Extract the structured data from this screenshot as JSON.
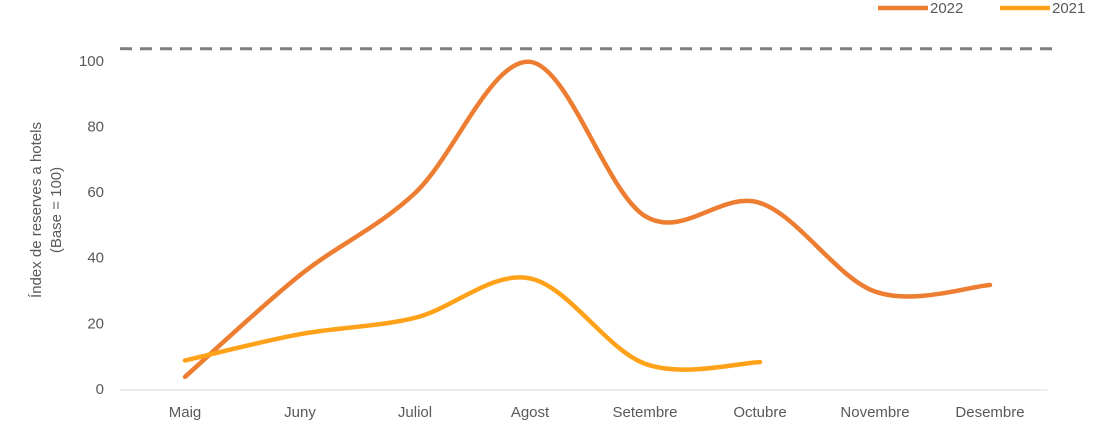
{
  "chart_data": {
    "type": "line",
    "y_label": [
      "Índex de reserves a hotels",
      "(Base = 100)"
    ],
    "categories": [
      "Maig",
      "Juny",
      "Juliol",
      "Agost",
      "Setembre",
      "Octubre",
      "Novembre",
      "Desembre"
    ],
    "series": [
      {
        "name": "2022",
        "color": "#ed7d31",
        "values": [
          4,
          35,
          60,
          100,
          53,
          57,
          30,
          32
        ]
      },
      {
        "name": "2021",
        "color": "#ffa21a",
        "values": [
          9,
          17,
          22,
          34,
          8,
          8.5,
          null,
          null
        ]
      }
    ],
    "reference_line": 104,
    "ylim": [
      0,
      110
    ],
    "yticks": [
      0,
      20,
      40,
      60,
      80,
      100
    ],
    "legend": "top-right"
  }
}
